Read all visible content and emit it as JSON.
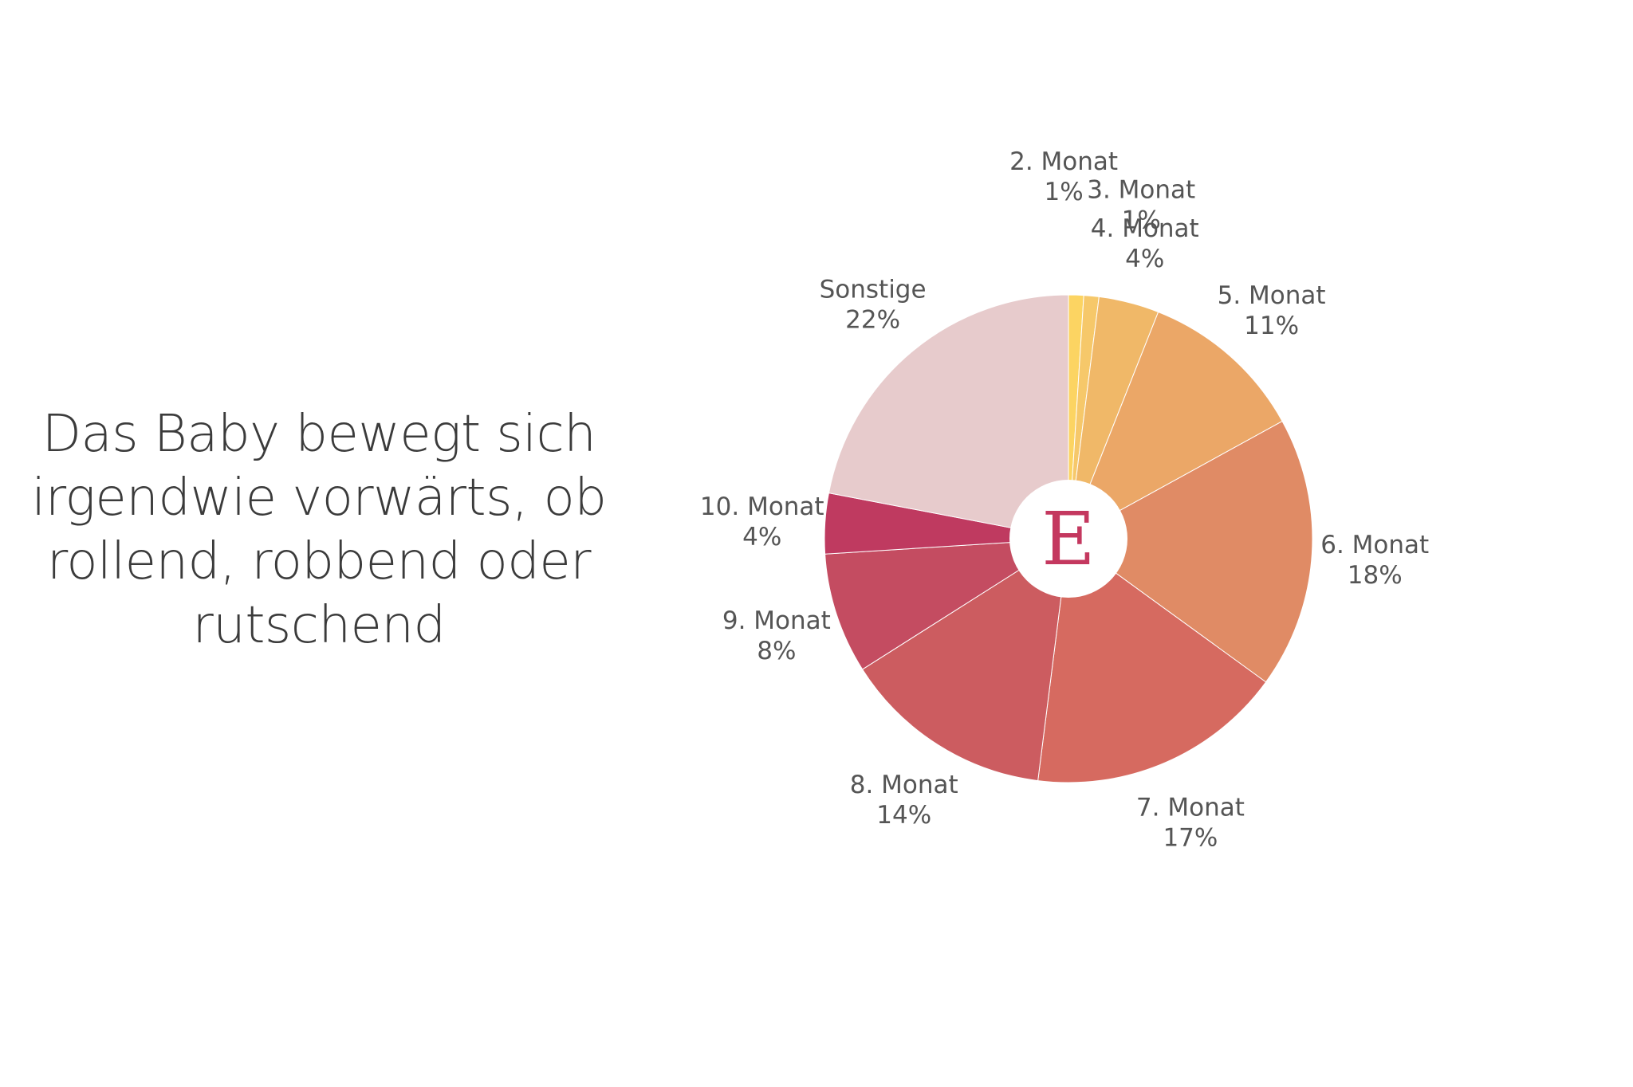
{
  "title": "Das Baby bewegt sich irgendwie vorwärts, ob rollend, robbend oder rutschend",
  "logo": {
    "letter": "E",
    "color": "#c4385f"
  },
  "chart_data": {
    "type": "pie",
    "slices": [
      {
        "label": "2. Monat",
        "value": 1,
        "display": "1%",
        "color": "#fcd462"
      },
      {
        "label": "3. Monat",
        "value": 1,
        "display": "1%",
        "color": "#f6c86a"
      },
      {
        "label": "4. Monat",
        "value": 4,
        "display": "4%",
        "color": "#f0b868"
      },
      {
        "label": "5. Monat",
        "value": 11,
        "display": "11%",
        "color": "#eba767"
      },
      {
        "label": "6. Monat",
        "value": 18,
        "display": "18%",
        "color": "#e08b65"
      },
      {
        "label": "7. Monat",
        "value": 17,
        "display": "17%",
        "color": "#d66a60"
      },
      {
        "label": "8. Monat",
        "value": 14,
        "display": "14%",
        "color": "#cc5c60"
      },
      {
        "label": "9. Monat",
        "value": 8,
        "display": "8%",
        "color": "#c44c61"
      },
      {
        "label": "10. Monat",
        "value": 4,
        "display": "4%",
        "color": "#bf3a60"
      },
      {
        "label": "Sonstige",
        "value": 22,
        "display": "22%",
        "color": "#e7cbcc"
      }
    ]
  }
}
